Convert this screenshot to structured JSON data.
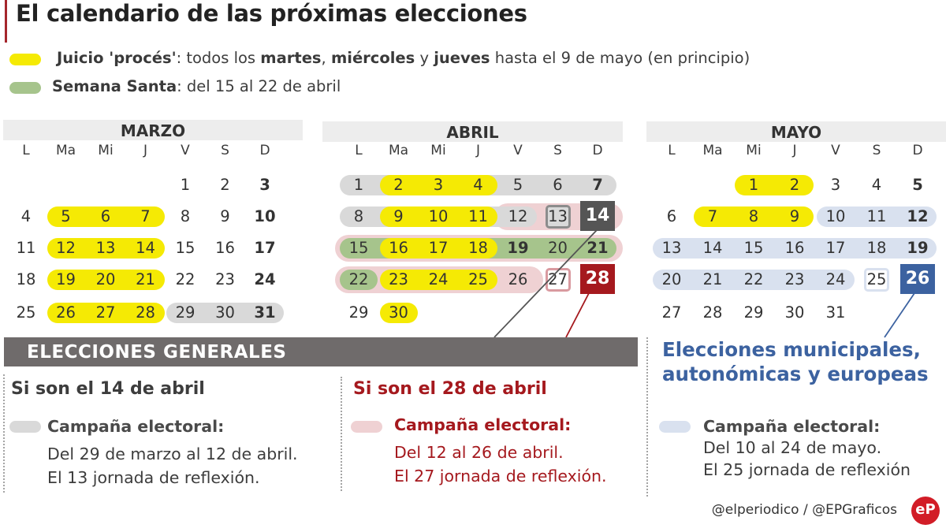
{
  "title": "El calendario de las próximas elecciones",
  "legend": [
    {
      "color": "#f5ea04",
      "parts": [
        {
          "text": "Juicio 'procés'",
          "bold": true
        },
        {
          "text": ": todos los "
        },
        {
          "text": "martes",
          "bold": true
        },
        {
          "text": ", "
        },
        {
          "text": "miércoles",
          "bold": true
        },
        {
          "text": " y "
        },
        {
          "text": "jueves",
          "bold": true
        },
        {
          "text": " hasta el 9 de mayo (en principio)"
        }
      ]
    },
    {
      "color": "#a6c48c",
      "parts": [
        {
          "text": "Semana Santa",
          "bold": true
        },
        {
          "text": ": del 15 al 22 de abril"
        }
      ]
    }
  ],
  "weekdays": [
    "L",
    "Ma",
    "Mi",
    "J",
    "V",
    "S",
    "D"
  ],
  "months": [
    {
      "name": "MARZO",
      "first_col": 4,
      "days": 31
    },
    {
      "name": "ABRIL",
      "first_col": 0,
      "days": 30
    },
    {
      "name": "MAYO",
      "first_col": 2,
      "days": 31
    }
  ],
  "elections": {
    "april_14": "14",
    "april_28": "28",
    "may_26": "26"
  },
  "generales": {
    "title": "ELECCIONES GENERALES",
    "scenario_14": {
      "title": "Si son el 14 de abril",
      "campaign_label": "Campaña electoral",
      "line1": "Del 29 de marzo al 12 de abril.",
      "line2": "El 13 jornada de reflexión."
    },
    "scenario_28": {
      "title": "Si son el 28 de abril",
      "campaign_label": "Campaña electoral",
      "line1": "Del 12 al 26 de abril.",
      "line2": "El 27 jornada de reflexión."
    }
  },
  "europeas": {
    "title_line1": "Elecciones municipales,",
    "title_line2": "autonómicas y europeas",
    "campaign_label": "Campaña electoral",
    "line1": "Del 10 al 24 de mayo.",
    "line2": "El 25 jornada de reflexión"
  },
  "credits": "@elperiodico / @EPGraficos",
  "logo": "eP",
  "colors": {
    "yellow": "#f5ea04",
    "green": "#a6c48c",
    "grey_campaign": "#d9d9d9",
    "pink_campaign": "#efd1d3",
    "blue_campaign": "#d9e1ef",
    "election_14": "#555555",
    "election_28": "#a5191e",
    "election_26": "#3c62a0"
  }
}
